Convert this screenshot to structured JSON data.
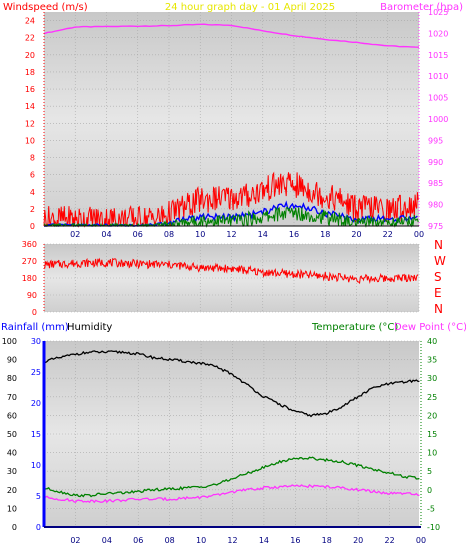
{
  "chart_data": [
    {
      "type": "line",
      "title": "24 hour graph day - 01 April 2025",
      "left_axis_label": "Windspeed (m/s)",
      "right_axis_label": "Barometer (hpa)",
      "x_ticks": [
        "02",
        "04",
        "06",
        "08",
        "10",
        "12",
        "14",
        "16",
        "18",
        "20",
        "22",
        "00"
      ],
      "left_ticks": [
        "0",
        "2",
        "4",
        "6",
        "8",
        "10",
        "12",
        "14",
        "16",
        "18",
        "20",
        "22",
        "24"
      ],
      "right_ticks": [
        "975",
        "980",
        "985",
        "990",
        "995",
        "1000",
        "1005",
        "1010",
        "1015",
        "1020",
        "1025"
      ],
      "ylim_left": [
        0,
        25
      ],
      "ylim_right": [
        975,
        1025
      ],
      "x_hours": [
        0,
        24
      ],
      "grid": true,
      "series": [
        {
          "key": "barometer",
          "color": "#ff33ff",
          "axis": "right",
          "x": [
            0,
            2,
            4,
            6,
            8,
            10,
            12,
            14,
            16,
            18,
            20,
            22,
            24
          ],
          "values": [
            1020,
            1021.5,
            1021.6,
            1021.7,
            1021.8,
            1022.1,
            1021.9,
            1020.6,
            1019.5,
            1018.6,
            1017.9,
            1017.1,
            1016.7
          ]
        },
        {
          "key": "wind_gust",
          "color": "#ff0000",
          "axis": "left",
          "x": [
            0,
            2,
            4,
            6,
            7.5,
            9,
            10,
            11,
            12,
            13,
            14,
            15,
            16,
            17,
            18,
            19,
            20,
            21,
            22,
            23,
            24
          ],
          "values": [
            0.8,
            0.8,
            0.8,
            0.8,
            1.0,
            2.2,
            3.0,
            3.2,
            3.3,
            3.5,
            4.2,
            4.8,
            4.8,
            4.2,
            3.5,
            3.0,
            2.0,
            2.2,
            1.8,
            2.2,
            2.5
          ]
        },
        {
          "key": "wind_avg",
          "color": "#0000ff",
          "axis": "left",
          "x": [
            0,
            2,
            4,
            6,
            7.5,
            9,
            10,
            11,
            12,
            13,
            14,
            15,
            16,
            17,
            18,
            19,
            20,
            21,
            22,
            23,
            24
          ],
          "values": [
            0.1,
            0.1,
            0.1,
            0.1,
            0.2,
            0.8,
            1.0,
            1.0,
            1.0,
            1.2,
            1.6,
            2.2,
            2.5,
            2.1,
            1.5,
            1.2,
            0.5,
            0.9,
            0.8,
            0.8,
            1.0
          ]
        },
        {
          "key": "wind_speed",
          "color": "#008000",
          "axis": "left",
          "x": [
            0,
            2,
            4,
            6,
            7.5,
            9,
            10,
            11,
            12,
            13,
            14,
            15,
            16,
            17,
            18,
            19,
            20,
            21,
            22,
            23,
            24
          ],
          "values": [
            0.0,
            0.0,
            0.0,
            0.0,
            0.1,
            0.4,
            0.6,
            0.6,
            0.6,
            0.8,
            1.0,
            1.4,
            1.6,
            1.3,
            1.0,
            0.7,
            0.3,
            0.5,
            0.4,
            0.5,
            0.6
          ]
        }
      ]
    },
    {
      "type": "scatter",
      "left_ticks": [
        "360",
        "270",
        "180",
        "90",
        "0"
      ],
      "compass_labels": [
        "N",
        "W",
        "S",
        "E",
        "N"
      ],
      "ylim": [
        0,
        360
      ],
      "x_hours": [
        0,
        24
      ],
      "grid": true,
      "series": [
        {
          "key": "wind_direction",
          "color": "#ff0000",
          "x": [
            0,
            2,
            4,
            6,
            8,
            10,
            12,
            14,
            16,
            18,
            20,
            22,
            24
          ],
          "values": [
            250,
            258,
            262,
            255,
            250,
            235,
            230,
            210,
            200,
            190,
            175,
            178,
            185
          ]
        }
      ]
    },
    {
      "type": "line",
      "rain_axis_label": "Rainfall (mm)",
      "humidity_axis_label": "Humidity",
      "temperature_axis_label": "Temperature (°C)",
      "dewpoint_axis_label": "Dew Point (°C)",
      "x_ticks": [
        "02",
        "04",
        "06",
        "08",
        "10",
        "12",
        "14",
        "16",
        "18",
        "20",
        "22",
        "00"
      ],
      "humidity_ticks": [
        "0",
        "10",
        "20",
        "30",
        "40",
        "50",
        "60",
        "70",
        "80",
        "90",
        "100"
      ],
      "rain_ticks": [
        "0",
        "5",
        "10",
        "15",
        "20",
        "25",
        "30"
      ],
      "temp_ticks": [
        "-10",
        "-5",
        "0",
        "5",
        "10",
        "15",
        "20",
        "25",
        "30",
        "35",
        "40"
      ],
      "ylim_humidity": [
        0,
        100
      ],
      "ylim_rain": [
        0,
        30
      ],
      "ylim_temp": [
        -10,
        40
      ],
      "x_hours": [
        0,
        24
      ],
      "grid": true,
      "series": [
        {
          "key": "humidity",
          "color": "#000000",
          "axis": "humidity",
          "x": [
            0,
            1,
            2,
            3,
            4,
            5,
            6,
            7,
            8,
            9,
            10,
            11,
            12,
            13,
            14,
            15,
            16,
            17,
            18,
            19,
            20,
            21,
            22,
            23,
            24
          ],
          "values": [
            89,
            91,
            93,
            94,
            94,
            94,
            93,
            91,
            90,
            89,
            88,
            86,
            82,
            76,
            70,
            66,
            62,
            60,
            61,
            65,
            70,
            75,
            77,
            78,
            79
          ]
        },
        {
          "key": "temperature",
          "color": "#008000",
          "axis": "temp",
          "x": [
            0,
            1,
            2,
            3,
            4,
            5,
            6,
            7,
            8,
            9,
            10,
            11,
            12,
            13,
            14,
            15,
            16,
            17,
            18,
            19,
            20,
            21,
            22,
            23,
            24
          ],
          "values": [
            0.5,
            -0.5,
            -1.5,
            -1.5,
            -1,
            -0.8,
            -0.5,
            0,
            0.2,
            0.5,
            0.8,
            1.5,
            3,
            4.5,
            6,
            7.5,
            8.5,
            8.5,
            8,
            7.5,
            6.5,
            5.5,
            4.5,
            3.5,
            3
          ]
        },
        {
          "key": "dew_point",
          "color": "#ff33ff",
          "axis": "temp",
          "x": [
            0,
            1,
            2,
            3,
            4,
            5,
            6,
            7,
            8,
            9,
            10,
            11,
            12,
            13,
            14,
            15,
            16,
            17,
            18,
            19,
            20,
            21,
            22,
            23,
            24
          ],
          "values": [
            -2,
            -2.5,
            -3,
            -3,
            -3,
            -2.8,
            -2.5,
            -2.5,
            -2.5,
            -2.2,
            -2,
            -1.5,
            -0.5,
            0,
            0.5,
            0.8,
            1,
            1,
            0.8,
            0.5,
            0,
            -0.5,
            -1,
            -1,
            -1.5
          ]
        },
        {
          "key": "rainfall",
          "color": "#0000ff",
          "axis": "rain",
          "x": [
            0,
            24
          ],
          "values": [
            0,
            0
          ]
        }
      ]
    }
  ]
}
